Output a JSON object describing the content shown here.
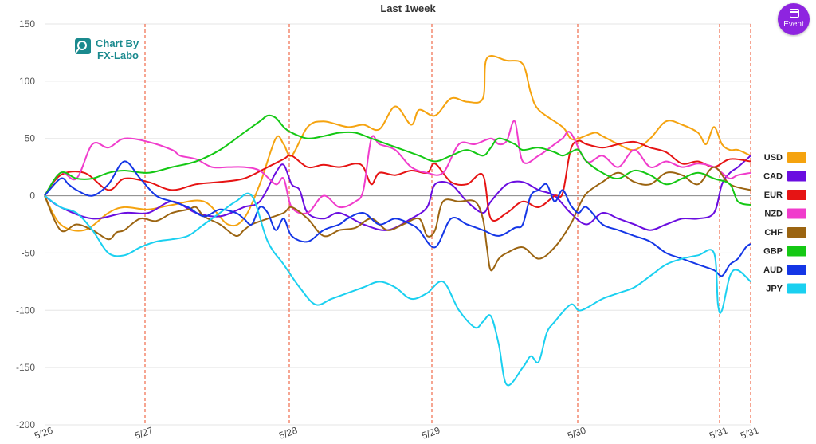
{
  "chart_data": {
    "type": "line",
    "title": "Last 1week",
    "xlabel": "",
    "ylabel": "",
    "ylim": [
      -200,
      150
    ],
    "xlim": [
      0,
      886
    ],
    "yticks": [
      150,
      100,
      50,
      0,
      -50,
      -100,
      -150,
      -200
    ],
    "x_ticks": [
      {
        "label": "5/26",
        "x": 0
      },
      {
        "label": "5/27",
        "x": 126
      },
      {
        "label": "5/28",
        "x": 307
      },
      {
        "label": "5/29",
        "x": 486
      },
      {
        "label": "5/30",
        "x": 669
      },
      {
        "label": "5/31",
        "x": 847
      },
      {
        "label": "5/31",
        "x": 886
      }
    ],
    "event_lines_x": [
      126,
      307,
      486,
      669,
      847,
      886
    ],
    "grid": true,
    "legend_position": "right",
    "series": [
      {
        "name": "USD",
        "color": "#f5a30f",
        "x": [
          0,
          20,
          50,
          80,
          100,
          130,
          160,
          200,
          230,
          250,
          270,
          290,
          300,
          310,
          330,
          350,
          380,
          400,
          420,
          440,
          460,
          470,
          490,
          510,
          530,
          550,
          555,
          580,
          600,
          610,
          620,
          650,
          660,
          670,
          690,
          700,
          720,
          740,
          760,
          780,
          800,
          820,
          830,
          840,
          850,
          860,
          870,
          886
        ],
        "values": [
          0,
          -25,
          -30,
          -15,
          -10,
          -12,
          -8,
          -5,
          -25,
          -20,
          10,
          50,
          45,
          35,
          60,
          65,
          60,
          62,
          58,
          78,
          62,
          75,
          70,
          85,
          82,
          85,
          120,
          118,
          115,
          90,
          75,
          60,
          50,
          50,
          55,
          52,
          45,
          40,
          50,
          65,
          62,
          55,
          45,
          60,
          45,
          40,
          40,
          35
        ]
      },
      {
        "name": "CAD",
        "color": "#6a0de0",
        "x": [
          0,
          20,
          60,
          100,
          130,
          160,
          190,
          220,
          250,
          270,
          290,
          300,
          310,
          320,
          330,
          350,
          370,
          400,
          430,
          460,
          480,
          490,
          510,
          530,
          550,
          560,
          580,
          600,
          620,
          640,
          660,
          680,
          700,
          720,
          740,
          760,
          780,
          800,
          820,
          840,
          850,
          860,
          870,
          886
        ],
        "values": [
          0,
          -10,
          -20,
          -15,
          -15,
          -5,
          -15,
          -18,
          -10,
          -5,
          20,
          27,
          10,
          5,
          -15,
          -20,
          -15,
          -25,
          -30,
          -20,
          -10,
          10,
          10,
          -5,
          -15,
          -5,
          10,
          12,
          5,
          0,
          -15,
          -25,
          -15,
          -20,
          -25,
          -30,
          -25,
          -20,
          -20,
          -15,
          10,
          20,
          25,
          35
        ]
      },
      {
        "name": "EUR",
        "color": "#e61414",
        "x": [
          0,
          20,
          50,
          80,
          100,
          130,
          160,
          190,
          220,
          250,
          280,
          300,
          310,
          330,
          350,
          370,
          390,
          400,
          410,
          420,
          440,
          460,
          480,
          490,
          510,
          530,
          550,
          560,
          580,
          600,
          620,
          640,
          650,
          660,
          670,
          680,
          700,
          720,
          740,
          760,
          780,
          800,
          820,
          840,
          860,
          886
        ],
        "values": [
          0,
          18,
          20,
          5,
          15,
          12,
          5,
          10,
          12,
          15,
          25,
          32,
          35,
          25,
          27,
          25,
          28,
          25,
          10,
          20,
          18,
          22,
          20,
          28,
          12,
          10,
          18,
          -20,
          -15,
          -5,
          -10,
          0,
          2,
          40,
          48,
          45,
          42,
          45,
          47,
          42,
          38,
          28,
          30,
          25,
          32,
          30
        ]
      },
      {
        "name": "NZD",
        "color": "#f03ccc",
        "x": [
          0,
          20,
          40,
          60,
          80,
          100,
          130,
          160,
          170,
          190,
          210,
          230,
          250,
          270,
          290,
          300,
          310,
          330,
          350,
          370,
          390,
          400,
          410,
          420,
          440,
          460,
          480,
          500,
          520,
          540,
          560,
          570,
          580,
          590,
          600,
          620,
          640,
          650,
          660,
          680,
          700,
          720,
          740,
          760,
          780,
          800,
          820,
          840,
          850,
          860,
          870,
          886
        ],
        "values": [
          0,
          20,
          15,
          45,
          42,
          50,
          47,
          40,
          35,
          32,
          25,
          25,
          25,
          22,
          10,
          15,
          -10,
          -15,
          0,
          -10,
          -5,
          5,
          50,
          45,
          40,
          25,
          20,
          20,
          45,
          45,
          50,
          45,
          48,
          65,
          30,
          35,
          45,
          50,
          55,
          30,
          35,
          25,
          40,
          25,
          30,
          25,
          28,
          25,
          20,
          15,
          18,
          20
        ]
      },
      {
        "name": "CHF",
        "color": "#9b6411",
        "x": [
          0,
          20,
          40,
          60,
          80,
          90,
          100,
          120,
          140,
          160,
          180,
          190,
          200,
          220,
          240,
          250,
          260,
          280,
          300,
          310,
          330,
          350,
          370,
          390,
          410,
          430,
          450,
          470,
          480,
          490,
          500,
          520,
          540,
          550,
          555,
          560,
          570,
          580,
          600,
          620,
          640,
          660,
          670,
          680,
          700,
          720,
          740,
          760,
          780,
          800,
          820,
          840,
          860,
          886
        ],
        "values": [
          0,
          -30,
          -25,
          -30,
          -38,
          -32,
          -30,
          -20,
          -22,
          -15,
          -12,
          -10,
          -18,
          -25,
          -35,
          -30,
          -25,
          -20,
          -15,
          -10,
          -20,
          -35,
          -30,
          -28,
          -20,
          -30,
          -25,
          -20,
          -35,
          -30,
          -5,
          -5,
          -5,
          -20,
          -45,
          -65,
          -55,
          -50,
          -45,
          -55,
          -45,
          -25,
          -10,
          2,
          12,
          20,
          12,
          10,
          20,
          18,
          10,
          25,
          10,
          5
        ]
      },
      {
        "name": "GBP",
        "color": "#14c814",
        "x": [
          0,
          20,
          40,
          60,
          80,
          100,
          130,
          160,
          190,
          220,
          250,
          270,
          280,
          290,
          300,
          310,
          330,
          350,
          370,
          390,
          410,
          430,
          450,
          470,
          490,
          510,
          530,
          550,
          560,
          570,
          590,
          600,
          620,
          640,
          650,
          660,
          670,
          680,
          700,
          720,
          740,
          760,
          780,
          800,
          820,
          840,
          860,
          870,
          886
        ],
        "values": [
          0,
          20,
          15,
          15,
          20,
          22,
          20,
          25,
          30,
          40,
          55,
          65,
          70,
          68,
          60,
          55,
          50,
          52,
          55,
          55,
          50,
          45,
          40,
          35,
          30,
          35,
          40,
          35,
          42,
          50,
          45,
          40,
          42,
          38,
          35,
          38,
          40,
          30,
          20,
          15,
          22,
          18,
          10,
          15,
          20,
          15,
          10,
          -5,
          -8
        ]
      },
      {
        "name": "AUD",
        "color": "#1436e6",
        "x": [
          0,
          20,
          30,
          40,
          60,
          80,
          100,
          120,
          140,
          160,
          180,
          200,
          220,
          240,
          250,
          260,
          270,
          280,
          290,
          300,
          310,
          330,
          350,
          370,
          380,
          400,
          420,
          440,
          460,
          470,
          490,
          510,
          530,
          550,
          570,
          590,
          600,
          610,
          620,
          630,
          640,
          650,
          660,
          670,
          680,
          700,
          720,
          740,
          760,
          780,
          800,
          820,
          840,
          850,
          860,
          870,
          880,
          886
        ],
        "values": [
          0,
          15,
          10,
          5,
          0,
          10,
          30,
          15,
          0,
          -5,
          -10,
          -18,
          -12,
          -15,
          -20,
          -25,
          -10,
          -15,
          -30,
          -20,
          -35,
          -40,
          -30,
          -25,
          -20,
          -15,
          -25,
          -20,
          -25,
          -30,
          -45,
          -20,
          -25,
          -30,
          -35,
          -28,
          -25,
          0,
          5,
          10,
          -5,
          5,
          -8,
          -15,
          -10,
          -25,
          -30,
          -35,
          -40,
          -50,
          -55,
          -60,
          -65,
          -70,
          -60,
          -55,
          -45,
          -42
        ]
      },
      {
        "name": "JPY",
        "color": "#1ad0f0",
        "x": [
          0,
          20,
          40,
          60,
          80,
          100,
          120,
          140,
          160,
          180,
          200,
          220,
          240,
          260,
          280,
          300,
          320,
          340,
          360,
          380,
          400,
          420,
          440,
          460,
          480,
          500,
          520,
          540,
          550,
          560,
          570,
          580,
          600,
          610,
          620,
          630,
          640,
          660,
          670,
          680,
          700,
          720,
          740,
          760,
          780,
          800,
          820,
          840,
          845,
          850,
          860,
          870,
          886
        ],
        "values": [
          0,
          -10,
          -15,
          -30,
          -50,
          -52,
          -45,
          -40,
          -38,
          -35,
          -25,
          -15,
          -5,
          0,
          -40,
          -60,
          -80,
          -95,
          -90,
          -85,
          -80,
          -75,
          -80,
          -90,
          -85,
          -75,
          -100,
          -115,
          -110,
          -105,
          -130,
          -165,
          -150,
          -140,
          -145,
          -120,
          -110,
          -95,
          -100,
          -98,
          -90,
          -85,
          -80,
          -70,
          -60,
          -55,
          -52,
          -50,
          -95,
          -100,
          -70,
          -65,
          -75
        ]
      }
    ]
  },
  "logo": {
    "line1": "Chart By",
    "line2": "FX-Labo"
  },
  "event_button": {
    "label": "Event",
    "icon": "calendar-icon",
    "color": "#8e24e0"
  }
}
